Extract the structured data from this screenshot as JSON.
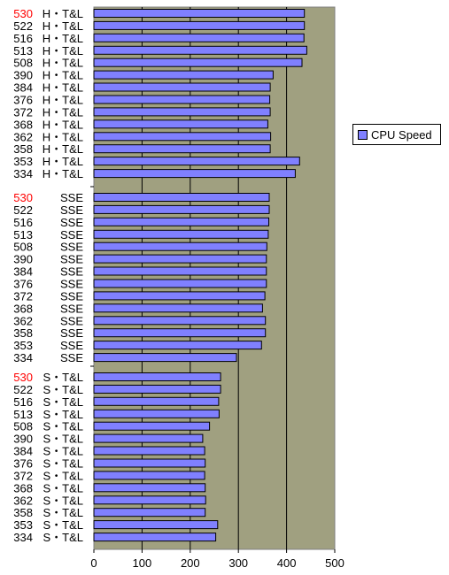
{
  "chart_data": {
    "type": "bar",
    "orientation": "horizontal",
    "series": [
      {
        "name": "CPU Speed",
        "color": "#8080ff"
      }
    ],
    "legend_position": "right",
    "plot_background": "#a0a080",
    "grid": true,
    "xlim": [
      0,
      500
    ],
    "x_ticks": [
      "0",
      "100",
      "200",
      "300",
      "400",
      "500"
    ],
    "highlight_color": "#ff0000",
    "groups": [
      {
        "label": "H・T&L",
        "entries": [
          {
            "cpu": "530",
            "value": 437,
            "highlight": true
          },
          {
            "cpu": "522",
            "value": 437
          },
          {
            "cpu": "516",
            "value": 436
          },
          {
            "cpu": "513",
            "value": 442
          },
          {
            "cpu": "508",
            "value": 432
          },
          {
            "cpu": "390",
            "value": 372
          },
          {
            "cpu": "384",
            "value": 366
          },
          {
            "cpu": "376",
            "value": 365
          },
          {
            "cpu": "372",
            "value": 366
          },
          {
            "cpu": "368",
            "value": 361
          },
          {
            "cpu": "362",
            "value": 367
          },
          {
            "cpu": "358",
            "value": 366
          },
          {
            "cpu": "353",
            "value": 427
          },
          {
            "cpu": "334",
            "value": 418
          }
        ]
      },
      {
        "label": "SSE",
        "entries": [
          {
            "cpu": "530",
            "value": 364,
            "highlight": true
          },
          {
            "cpu": "522",
            "value": 364
          },
          {
            "cpu": "516",
            "value": 363
          },
          {
            "cpu": "513",
            "value": 362
          },
          {
            "cpu": "508",
            "value": 359
          },
          {
            "cpu": "390",
            "value": 358
          },
          {
            "cpu": "384",
            "value": 358
          },
          {
            "cpu": "376",
            "value": 358
          },
          {
            "cpu": "372",
            "value": 355
          },
          {
            "cpu": "368",
            "value": 350
          },
          {
            "cpu": "362",
            "value": 356
          },
          {
            "cpu": "358",
            "value": 356
          },
          {
            "cpu": "353",
            "value": 348
          },
          {
            "cpu": "334",
            "value": 296
          }
        ]
      },
      {
        "label": "S・T&L",
        "entries": [
          {
            "cpu": "530",
            "value": 263,
            "highlight": true
          },
          {
            "cpu": "522",
            "value": 263
          },
          {
            "cpu": "516",
            "value": 259
          },
          {
            "cpu": "513",
            "value": 260
          },
          {
            "cpu": "508",
            "value": 240
          },
          {
            "cpu": "390",
            "value": 226
          },
          {
            "cpu": "384",
            "value": 230
          },
          {
            "cpu": "376",
            "value": 231
          },
          {
            "cpu": "372",
            "value": 230
          },
          {
            "cpu": "368",
            "value": 231
          },
          {
            "cpu": "362",
            "value": 232
          },
          {
            "cpu": "358",
            "value": 231
          },
          {
            "cpu": "353",
            "value": 257
          },
          {
            "cpu": "334",
            "value": 253
          }
        ]
      }
    ]
  }
}
